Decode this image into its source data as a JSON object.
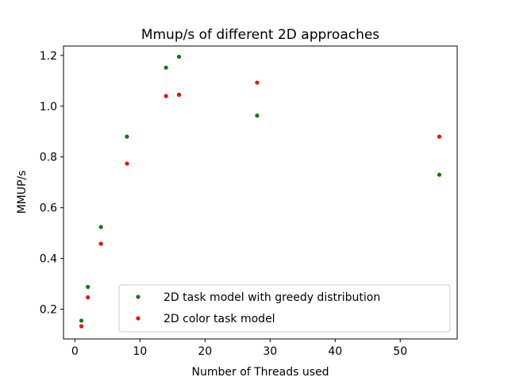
{
  "chart_data": {
    "type": "scatter",
    "title": "Mmup/s of different 2D approaches",
    "xlabel": "Number of Threads used",
    "ylabel": "MMUP/s",
    "xlim": [
      -1.75,
      58.75
    ],
    "ylim": [
      0.083,
      1.237
    ],
    "xticks": [
      0,
      10,
      20,
      30,
      40,
      50
    ],
    "yticks": [
      0.2,
      0.4,
      0.6,
      0.8,
      1.0,
      1.2
    ],
    "xtick_labels": [
      "0",
      "10",
      "20",
      "30",
      "40",
      "50"
    ],
    "ytick_labels": [
      "0.2",
      "0.4",
      "0.6",
      "0.8",
      "1.0",
      "1.2"
    ],
    "grid": false,
    "legend_position": "lower-right",
    "series": [
      {
        "name": "2D task model with greedy distribution",
        "color": "#008000",
        "x": [
          1,
          2,
          4,
          8,
          14,
          16,
          28,
          56
        ],
        "y": [
          0.155,
          0.288,
          0.524,
          0.88,
          1.152,
          1.195,
          0.963,
          0.73
        ]
      },
      {
        "name": "2D color task model",
        "color": "#ff0000",
        "x": [
          1,
          2,
          4,
          8,
          14,
          16,
          28,
          56
        ],
        "y": [
          0.133,
          0.247,
          0.458,
          0.774,
          1.04,
          1.045,
          1.093,
          0.88
        ]
      }
    ]
  }
}
